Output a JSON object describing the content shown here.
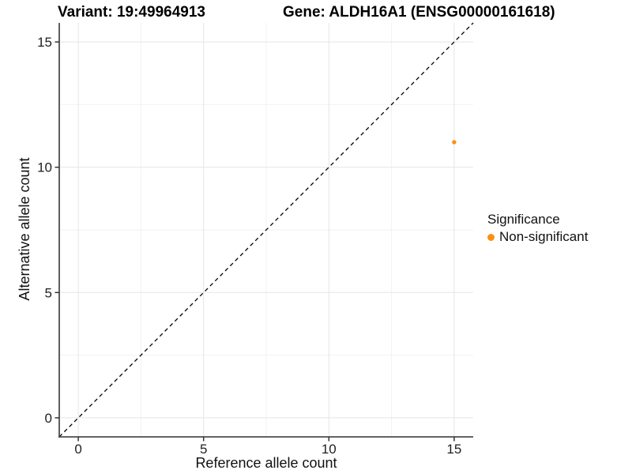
{
  "titles": {
    "variant_title": "Variant: 19:49964913",
    "gene_title": "Gene: ALDH16A1 (ENSG00000161618)"
  },
  "legend": {
    "title": "Significance",
    "items": [
      {
        "label": "Non-significant",
        "color": "#FB9017"
      }
    ]
  },
  "chart_data": {
    "type": "scatter",
    "title": "Variant: 19:49964913 / Gene: ALDH16A1 (ENSG00000161618)",
    "xlabel": "Reference allele count",
    "ylabel": "Alternative allele count",
    "xlim": [
      -0.76,
      15.76
    ],
    "ylim": [
      -0.76,
      15.76
    ],
    "x_ticks": [
      0,
      5,
      10,
      15
    ],
    "y_ticks": [
      0,
      5,
      10,
      15
    ],
    "x_minor_ticks": [
      2.5,
      7.5,
      12.5
    ],
    "y_minor_ticks": [
      2.5,
      7.5,
      12.5
    ],
    "grid": true,
    "legend_position": "right",
    "identity_line": {
      "slope": 1,
      "intercept": 0,
      "style": "dashed",
      "color": "#000000"
    },
    "series": [
      {
        "name": "Non-significant",
        "color": "#FB9017",
        "points": [
          {
            "x": 15,
            "y": 11
          }
        ]
      }
    ],
    "colors": {
      "major_grid": "#e5e5e5",
      "minor_grid": "#f2f2f2",
      "axis_line": "#4d4d4d",
      "tick_mark": "#333333",
      "tick_label": "#1f1f1f",
      "panel_background": "#ffffff"
    }
  }
}
